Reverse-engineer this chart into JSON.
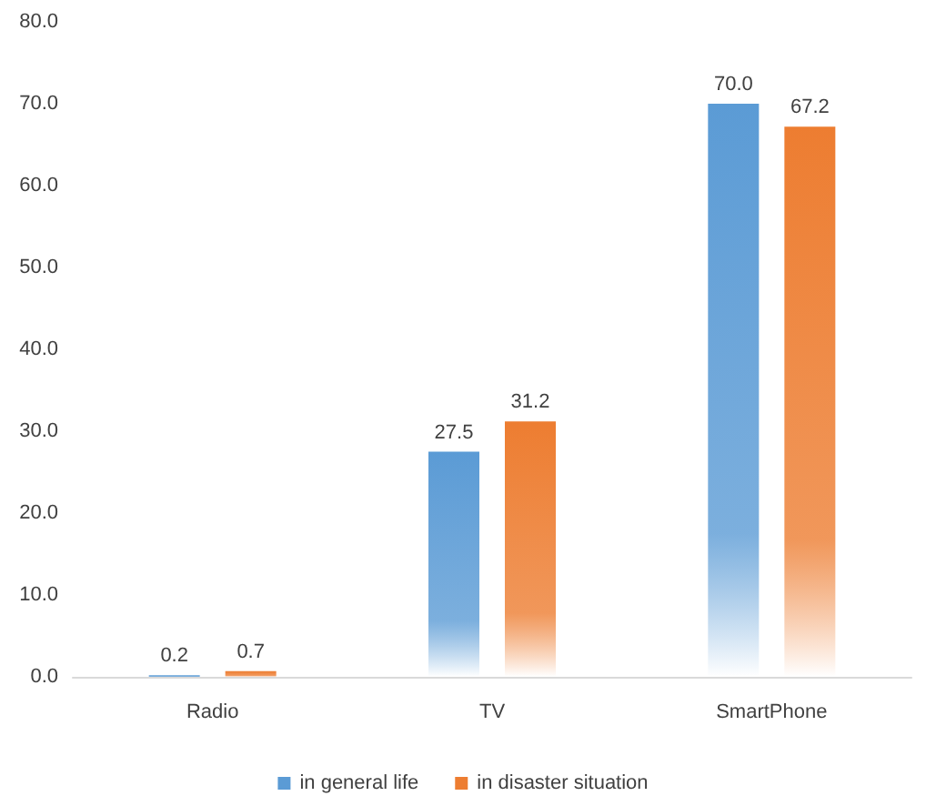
{
  "chart_data": {
    "type": "bar",
    "categories": [
      "Radio",
      "TV",
      "SmartPhone"
    ],
    "series": [
      {
        "name": "in general life",
        "color": "#5b9bd5",
        "values": [
          0.2,
          27.5,
          70.0
        ],
        "value_labels": [
          "0.2",
          "27.5",
          "70.0"
        ]
      },
      {
        "name": "in disaster situation",
        "color": "#ed7d31",
        "values": [
          0.7,
          31.2,
          67.2
        ],
        "value_labels": [
          "0.7",
          "31.2",
          "67.2"
        ]
      }
    ],
    "ylim": [
      0,
      80
    ],
    "yticks": [
      {
        "value": 0,
        "label": "0.0"
      },
      {
        "value": 10,
        "label": "10.0"
      },
      {
        "value": 20,
        "label": "20.0"
      },
      {
        "value": 30,
        "label": "30.0"
      },
      {
        "value": 40,
        "label": "40.0"
      },
      {
        "value": 50,
        "label": "50.0"
      },
      {
        "value": 60,
        "label": "60.0"
      },
      {
        "value": 70,
        "label": "70.0"
      },
      {
        "value": 80,
        "label": "80.0"
      }
    ],
    "grid": false,
    "legend": "bottom"
  }
}
